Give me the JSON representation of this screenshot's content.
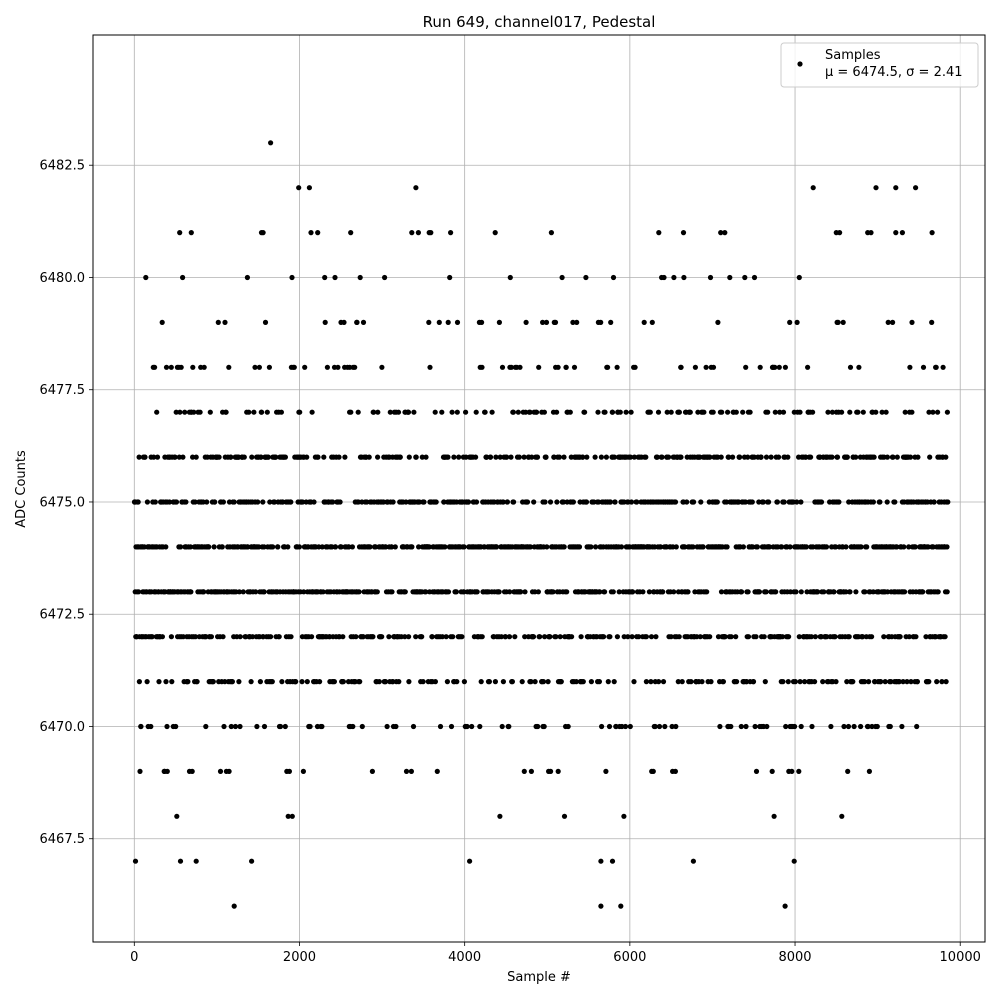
{
  "chart_data": {
    "type": "scatter",
    "title": "Run 649, channel017, Pedestal",
    "xlabel": "Sample #",
    "ylabel": "ADC Counts",
    "xlim": [
      -500,
      10300
    ],
    "ylim": [
      6465.2,
      6485.4
    ],
    "xticks": [
      0,
      2000,
      4000,
      6000,
      8000,
      10000
    ],
    "xtick_labels": [
      "0",
      "2000",
      "4000",
      "6000",
      "8000",
      "10000"
    ],
    "yticks": [
      6467.5,
      6470.0,
      6472.5,
      6475.0,
      6477.5,
      6480.0,
      6482.5
    ],
    "ytick_labels": [
      "6467.5",
      "6470.0",
      "6472.5",
      "6475.0",
      "6477.5",
      "6480.0",
      "6482.5"
    ],
    "grid": true,
    "legend_position": "top-right",
    "marker_color": "#000000",
    "grid_color": "#b0b0b0",
    "series": [
      {
        "name": "Samples",
        "stats_label": "μ = 6474.5, σ = 2.41",
        "n_samples": 9850,
        "x_range": [
          0,
          9850
        ],
        "level_density": [
          {
            "y": 6466,
            "fraction": 0.0004
          },
          {
            "y": 6467,
            "fraction": 0.0008
          },
          {
            "y": 6468,
            "fraction": 0.004
          },
          {
            "y": 6469,
            "fraction": 0.012
          },
          {
            "y": 6470,
            "fraction": 0.035
          },
          {
            "y": 6471,
            "fraction": 0.08
          },
          {
            "y": 6472,
            "fraction": 0.14
          },
          {
            "y": 6473,
            "fraction": 0.18
          },
          {
            "y": 6474,
            "fraction": 0.2
          },
          {
            "y": 6475,
            "fraction": 0.17
          },
          {
            "y": 6476,
            "fraction": 0.12
          },
          {
            "y": 6477,
            "fraction": 0.07
          },
          {
            "y": 6478,
            "fraction": 0.035
          },
          {
            "y": 6479,
            "fraction": 0.018
          },
          {
            "y": 6480,
            "fraction": 0.008
          },
          {
            "y": 6481,
            "fraction": 0.002
          },
          {
            "y": 6482,
            "fraction": 0.0007
          },
          {
            "y": 6483,
            "fraction": 0.0001
          }
        ],
        "outliers": [
          {
            "x": 15,
            "y": 6467
          },
          {
            "x": 560,
            "y": 6467
          },
          {
            "x": 750,
            "y": 6467
          },
          {
            "x": 1420,
            "y": 6467
          },
          {
            "x": 4060,
            "y": 6467
          },
          {
            "x": 5650,
            "y": 6467
          },
          {
            "x": 5790,
            "y": 6467
          },
          {
            "x": 6770,
            "y": 6467
          },
          {
            "x": 7990,
            "y": 6467
          },
          {
            "x": 1210,
            "y": 6466
          },
          {
            "x": 5650,
            "y": 6466
          },
          {
            "x": 5890,
            "y": 6466
          },
          {
            "x": 7880,
            "y": 6466
          },
          {
            "x": 1650,
            "y": 6483
          },
          {
            "x": 1990,
            "y": 6482
          },
          {
            "x": 2120,
            "y": 6482
          },
          {
            "x": 3410,
            "y": 6482
          },
          {
            "x": 8220,
            "y": 6482
          },
          {
            "x": 8980,
            "y": 6482
          },
          {
            "x": 9220,
            "y": 6482
          },
          {
            "x": 9460,
            "y": 6482
          },
          {
            "x": 550,
            "y": 6481
          },
          {
            "x": 690,
            "y": 6481
          },
          {
            "x": 1540,
            "y": 6481
          },
          {
            "x": 1560,
            "y": 6481
          },
          {
            "x": 2140,
            "y": 6481
          },
          {
            "x": 2220,
            "y": 6481
          },
          {
            "x": 2620,
            "y": 6481
          },
          {
            "x": 3360,
            "y": 6481
          },
          {
            "x": 3440,
            "y": 6481
          },
          {
            "x": 3570,
            "y": 6481
          },
          {
            "x": 3590,
            "y": 6481
          },
          {
            "x": 3830,
            "y": 6481
          },
          {
            "x": 4370,
            "y": 6481
          },
          {
            "x": 5050,
            "y": 6481
          },
          {
            "x": 6350,
            "y": 6481
          },
          {
            "x": 6650,
            "y": 6481
          },
          {
            "x": 7100,
            "y": 6481
          },
          {
            "x": 7150,
            "y": 6481
          },
          {
            "x": 8500,
            "y": 6481
          },
          {
            "x": 8540,
            "y": 6481
          },
          {
            "x": 8880,
            "y": 6481
          },
          {
            "x": 8920,
            "y": 6481
          },
          {
            "x": 9220,
            "y": 6481
          },
          {
            "x": 9300,
            "y": 6481
          },
          {
            "x": 9660,
            "y": 6481
          }
        ]
      }
    ]
  }
}
